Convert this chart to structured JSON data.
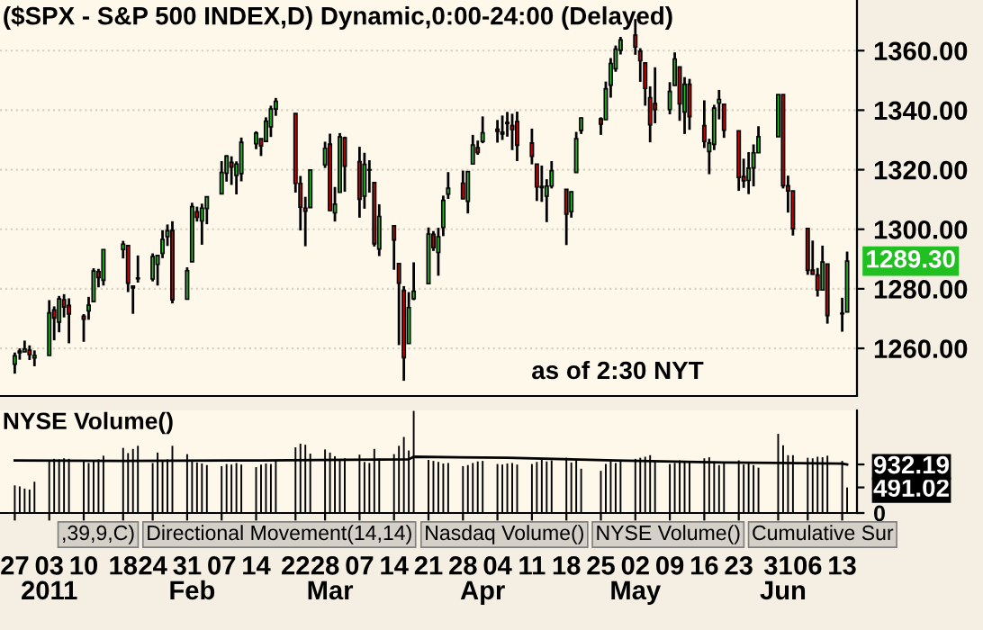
{
  "chart_data": [
    {
      "type": "candlestick",
      "title": "($SPX - S&P 500 INDEX,D) Dynamic,0:00-24:00 (Delayed)",
      "x": [
        "2010-12-27",
        "2010-12-28",
        "2010-12-29",
        "2010-12-30",
        "2010-12-31",
        "2011-01-03",
        "2011-01-04",
        "2011-01-05",
        "2011-01-06",
        "2011-01-07",
        "2011-01-10",
        "2011-01-11",
        "2011-01-12",
        "2011-01-13",
        "2011-01-14",
        "2011-01-18",
        "2011-01-19",
        "2011-01-20",
        "2011-01-21",
        "2011-01-24",
        "2011-01-25",
        "2011-01-26",
        "2011-01-27",
        "2011-01-28",
        "2011-01-31",
        "2011-02-01",
        "2011-02-02",
        "2011-02-03",
        "2011-02-04",
        "2011-02-07",
        "2011-02-08",
        "2011-02-09",
        "2011-02-10",
        "2011-02-11",
        "2011-02-14",
        "2011-02-15",
        "2011-02-16",
        "2011-02-17",
        "2011-02-18",
        "2011-02-22",
        "2011-02-23",
        "2011-02-24",
        "2011-02-25",
        "2011-02-28",
        "2011-03-01",
        "2011-03-02",
        "2011-03-03",
        "2011-03-04",
        "2011-03-07",
        "2011-03-08",
        "2011-03-09",
        "2011-03-10",
        "2011-03-11",
        "2011-03-14",
        "2011-03-15",
        "2011-03-16",
        "2011-03-17",
        "2011-03-18",
        "2011-03-21",
        "2011-03-22",
        "2011-03-23",
        "2011-03-24",
        "2011-03-25",
        "2011-03-28",
        "2011-03-29",
        "2011-03-30",
        "2011-03-31",
        "2011-04-01",
        "2011-04-04",
        "2011-04-05",
        "2011-04-06",
        "2011-04-07",
        "2011-04-08",
        "2011-04-11",
        "2011-04-12",
        "2011-04-13",
        "2011-04-14",
        "2011-04-15",
        "2011-04-18",
        "2011-04-19",
        "2011-04-20",
        "2011-04-21",
        "2011-04-25",
        "2011-04-26",
        "2011-04-27",
        "2011-04-28",
        "2011-04-29",
        "2011-05-02",
        "2011-05-03",
        "2011-05-04",
        "2011-05-05",
        "2011-05-06",
        "2011-05-09",
        "2011-05-10",
        "2011-05-11",
        "2011-05-12",
        "2011-05-13",
        "2011-05-16",
        "2011-05-17",
        "2011-05-18",
        "2011-05-19",
        "2011-05-20",
        "2011-05-23",
        "2011-05-24",
        "2011-05-25",
        "2011-05-26",
        "2011-05-27",
        "2011-05-31",
        "2011-06-01",
        "2011-06-02",
        "2011-06-03",
        "2011-06-06",
        "2011-06-07",
        "2011-06-08",
        "2011-06-09",
        "2011-06-10",
        "2011-06-13",
        "2011-06-14"
      ],
      "ohlc": [
        [
          1254.7,
          1258.6,
          1251.5,
          1257.5
        ],
        [
          1259.1,
          1260.0,
          1256.2,
          1258.5
        ],
        [
          1258.8,
          1262.6,
          1258.8,
          1259.8
        ],
        [
          1259.4,
          1261.0,
          1256.1,
          1257.9
        ],
        [
          1256.8,
          1259.3,
          1254.0,
          1257.6
        ],
        [
          1257.6,
          1276.2,
          1257.6,
          1271.9
        ],
        [
          1272.9,
          1274.1,
          1262.7,
          1270.2
        ],
        [
          1268.8,
          1277.6,
          1265.4,
          1276.6
        ],
        [
          1276.3,
          1278.2,
          1270.4,
          1273.9
        ],
        [
          1274.4,
          1276.8,
          1261.7,
          1271.5
        ],
        [
          1270.8,
          1271.5,
          1262.2,
          1269.8
        ],
        [
          1272.6,
          1277.3,
          1269.6,
          1274.5
        ],
        [
          1275.7,
          1286.9,
          1275.7,
          1286.0
        ],
        [
          1285.8,
          1286.7,
          1280.5,
          1283.8
        ],
        [
          1282.9,
          1293.2,
          1281.1,
          1293.2
        ],
        [
          1293.2,
          1296.1,
          1290.2,
          1295.0
        ],
        [
          1294.5,
          1294.6,
          1278.9,
          1281.9
        ],
        [
          1280.9,
          1280.9,
          1271.6,
          1280.3
        ],
        [
          1283.6,
          1291.2,
          1282.1,
          1283.4
        ],
        [
          1283.3,
          1291.9,
          1282.5,
          1290.8
        ],
        [
          1288.2,
          1291.3,
          1281.1,
          1291.2
        ],
        [
          1291.9,
          1299.7,
          1290.3,
          1296.6
        ],
        [
          1297.5,
          1301.6,
          1294.4,
          1299.5
        ],
        [
          1299.6,
          1302.7,
          1275.1,
          1276.3
        ],
        [
          1276.5,
          1287.2,
          1276.5,
          1286.1
        ],
        [
          1289.1,
          1308.9,
          1289.1,
          1307.6
        ],
        [
          1305.9,
          1307.6,
          1302.6,
          1304.0
        ],
        [
          1302.8,
          1308.6,
          1294.8,
          1307.1
        ],
        [
          1307.0,
          1311.0,
          1301.7,
          1310.9
        ],
        [
          1311.9,
          1322.9,
          1311.9,
          1319.1
        ],
        [
          1318.8,
          1324.9,
          1316.0,
          1324.6
        ],
        [
          1322.5,
          1324.5,
          1314.9,
          1320.9
        ],
        [
          1318.1,
          1322.8,
          1311.7,
          1321.9
        ],
        [
          1318.7,
          1330.8,
          1316.1,
          1329.2
        ],
        [
          1328.7,
          1332.9,
          1326.9,
          1332.3
        ],
        [
          1330.4,
          1330.4,
          1324.6,
          1328.0
        ],
        [
          1329.5,
          1337.6,
          1329.5,
          1336.3
        ],
        [
          1334.4,
          1341.5,
          1331.0,
          1340.4
        ],
        [
          1340.4,
          1344.1,
          1338.1,
          1343.0
        ],
        [
          1338.9,
          1338.9,
          1312.3,
          1315.4
        ],
        [
          1315.4,
          1317.9,
          1299.6,
          1307.4
        ],
        [
          1307.1,
          1310.9,
          1294.3,
          1306.1
        ],
        [
          1307.3,
          1320.0,
          1307.3,
          1319.9
        ],
        [
          1321.6,
          1329.4,
          1320.6,
          1327.2
        ],
        [
          1328.6,
          1332.1,
          1306.1,
          1306.3
        ],
        [
          1305.5,
          1314.2,
          1302.6,
          1308.4
        ],
        [
          1312.4,
          1332.3,
          1312.4,
          1331.0
        ],
        [
          1330.7,
          1331.1,
          1312.6,
          1321.2
        ],
        [
          1322.7,
          1327.7,
          1303.9,
          1310.1
        ],
        [
          1311.1,
          1325.7,
          1306.9,
          1321.8
        ],
        [
          1319.9,
          1323.2,
          1312.3,
          1320.0
        ],
        [
          1315.7,
          1315.7,
          1294.2,
          1295.1
        ],
        [
          1293.4,
          1308.4,
          1291.0,
          1304.3
        ],
        [
          1301.2,
          1301.2,
          1286.4,
          1296.4
        ],
        [
          1288.5,
          1288.5,
          1261.1,
          1281.9
        ],
        [
          1279.5,
          1280.9,
          1249.1,
          1256.9
        ],
        [
          1261.6,
          1278.9,
          1261.6,
          1273.7
        ],
        [
          1276.7,
          1288.9,
          1276.2,
          1279.2
        ],
        [
          1281.7,
          1300.6,
          1281.7,
          1298.4
        ],
        [
          1298.3,
          1299.4,
          1292.7,
          1293.8
        ],
        [
          1292.2,
          1300.5,
          1284.4,
          1297.5
        ],
        [
          1300.6,
          1311.3,
          1297.7,
          1309.7
        ],
        [
          1311.8,
          1319.2,
          1310.2,
          1313.8
        ],
        [
          1315.5,
          1319.7,
          1310.2,
          1310.2
        ],
        [
          1309.4,
          1319.5,
          1305.3,
          1319.4
        ],
        [
          1321.9,
          1331.7,
          1321.9,
          1328.3
        ],
        [
          1327.4,
          1329.8,
          1325.0,
          1325.8
        ],
        [
          1329.5,
          1337.9,
          1328.9,
          1332.4
        ],
        [
          1333.6,
          1336.7,
          1329.1,
          1332.9
        ],
        [
          1332.0,
          1338.2,
          1330.0,
          1332.6
        ],
        [
          1335.9,
          1339.4,
          1331.1,
          1335.5
        ],
        [
          1334.8,
          1338.8,
          1326.6,
          1333.5
        ],
        [
          1336.2,
          1339.5,
          1322.9,
          1328.2
        ],
        [
          1329.0,
          1333.8,
          1321.8,
          1324.5
        ],
        [
          1321.9,
          1321.9,
          1309.5,
          1314.2
        ],
        [
          1314.0,
          1321.4,
          1309.2,
          1314.4
        ],
        [
          1311.1,
          1316.8,
          1302.4,
          1314.5
        ],
        [
          1314.5,
          1322.9,
          1313.7,
          1319.7
        ],
        [
          1313.4,
          1313.4,
          1294.7,
          1305.1
        ],
        [
          1305.9,
          1312.7,
          1303.9,
          1312.6
        ],
        [
          1319.1,
          1332.7,
          1319.1,
          1330.4
        ],
        [
          1333.2,
          1337.5,
          1332.0,
          1337.4
        ],
        [
          1337.1,
          1337.6,
          1331.7,
          1335.3
        ],
        [
          1336.8,
          1349.6,
          1336.8,
          1347.2
        ],
        [
          1348.4,
          1357.5,
          1344.2,
          1355.7
        ],
        [
          1353.9,
          1361.7,
          1352.9,
          1360.5
        ],
        [
          1360.1,
          1364.6,
          1358.7,
          1363.6
        ],
        [
          1365.2,
          1370.6,
          1358.6,
          1361.2
        ],
        [
          1359.8,
          1360.8,
          1349.5,
          1356.6
        ],
        [
          1355.9,
          1355.9,
          1341.5,
          1347.3
        ],
        [
          1344.2,
          1348.0,
          1329.2,
          1335.1
        ],
        [
          1342.2,
          1354.4,
          1335.6,
          1340.2
        ],
        [
          1340.2,
          1349.4,
          1338.6,
          1346.3
        ],
        [
          1348.3,
          1359.4,
          1348.3,
          1357.2
        ],
        [
          1354.5,
          1354.5,
          1336.4,
          1342.1
        ],
        [
          1339.4,
          1351.1,
          1332.0,
          1348.7
        ],
        [
          1348.7,
          1350.5,
          1333.4,
          1337.8
        ],
        [
          1334.8,
          1343.3,
          1327.3,
          1329.5
        ],
        [
          1326.1,
          1330.4,
          1318.5,
          1329.0
        ],
        [
          1328.5,
          1341.8,
          1326.6,
          1340.7
        ],
        [
          1342.4,
          1346.8,
          1336.9,
          1343.6
        ],
        [
          1342.0,
          1342.0,
          1330.7,
          1333.3
        ],
        [
          1333.1,
          1333.1,
          1312.9,
          1317.4
        ],
        [
          1317.7,
          1323.7,
          1313.9,
          1316.3
        ],
        [
          1316.4,
          1325.9,
          1311.8,
          1320.5
        ],
        [
          1320.6,
          1328.5,
          1314.4,
          1325.7
        ],
        [
          1325.7,
          1334.6,
          1325.7,
          1331.1
        ],
        [
          1331.1,
          1345.2,
          1331.1,
          1345.2
        ],
        [
          1345.2,
          1345.2,
          1313.7,
          1314.6
        ],
        [
          1314.6,
          1318.0,
          1305.6,
          1312.9
        ],
        [
          1312.9,
          1312.9,
          1297.9,
          1300.2
        ],
        [
          1300.3,
          1300.3,
          1284.7,
          1286.2
        ],
        [
          1286.3,
          1296.2,
          1284.7,
          1284.9
        ],
        [
          1284.6,
          1287.0,
          1277.4,
          1279.6
        ],
        [
          1279.6,
          1294.5,
          1279.6,
          1289.0
        ],
        [
          1288.3,
          1288.3,
          1268.3,
          1271.0
        ],
        [
          1271.6,
          1277.0,
          1265.6,
          1271.8
        ],
        [
          1272.2,
          1292.5,
          1272.2,
          1289.3
        ]
      ],
      "colors": [
        "#20c020",
        "#d00000",
        "#20c020",
        "#d00000",
        "#20c020",
        "#20c020",
        "#d00000",
        "#20c020",
        "#d00000",
        "#d00000",
        "#d00000",
        "#20c020",
        "#20c020",
        "#d00000",
        "#20c020",
        "#20c020",
        "#d00000",
        "#d00000",
        "#d00000",
        "#20c020",
        "#20c020",
        "#20c020",
        "#20c020",
        "#d00000",
        "#20c020",
        "#20c020",
        "#d00000",
        "#20c020",
        "#20c020",
        "#20c020",
        "#20c020",
        "#d00000",
        "#20c020",
        "#20c020",
        "#20c020",
        "#d00000",
        "#20c020",
        "#20c020",
        "#20c020",
        "#d00000",
        "#d00000",
        "#d00000",
        "#20c020",
        "#20c020",
        "#d00000",
        "#20c020",
        "#20c020",
        "#d00000",
        "#d00000",
        "#20c020",
        "#d00000",
        "#d00000",
        "#20c020",
        "#d00000",
        "#d00000",
        "#d00000",
        "#20c020",
        "#20c020",
        "#20c020",
        "#d00000",
        "#20c020",
        "#20c020",
        "#20c020",
        "#d00000",
        "#20c020",
        "#20c020",
        "#d00000",
        "#20c020",
        "#d00000",
        "#20c020",
        "#d00000",
        "#d00000",
        "#d00000",
        "#d00000",
        "#d00000",
        "#20c020",
        "#20c020",
        "#20c020",
        "#d00000",
        "#20c020",
        "#20c020",
        "#20c020",
        "#d00000",
        "#20c020",
        "#20c020",
        "#20c020",
        "#20c020",
        "#d00000",
        "#d00000",
        "#d00000",
        "#d00000",
        "#d00000",
        "#20c020",
        "#20c020",
        "#d00000",
        "#20c020",
        "#d00000",
        "#d00000",
        "#20c020",
        "#20c020",
        "#20c020",
        "#d00000",
        "#d00000",
        "#d00000",
        "#20c020",
        "#20c020",
        "#20c020",
        "#20c020",
        "#d00000",
        "#d00000",
        "#d00000",
        "#d00000",
        "#d00000",
        "#d00000",
        "#20c020",
        "#d00000",
        "#20c020",
        "#20c020"
      ],
      "xlim": [
        "2010-12-24",
        "2011-06-16"
      ],
      "ylim": [
        1244,
        1377
      ],
      "yticks": [
        {
          "value": 1260,
          "label": "1260.00"
        },
        {
          "value": 1280,
          "label": "1280.00"
        },
        {
          "value": 1300,
          "label": "1300.00"
        },
        {
          "value": 1320,
          "label": "1320.00"
        },
        {
          "value": 1340,
          "label": "1340.00"
        },
        {
          "value": 1360,
          "label": "1360.00"
        }
      ],
      "grid": "y",
      "tick_labels": "y",
      "annotations": [
        "as of 2:30 NYT",
        {
          "text": "1289.30",
          "x": "2011-06-14",
          "y": 1289.3
        }
      ]
    },
    {
      "type": "bar",
      "title": "NYSE Volume()",
      "x": [
        "2010-12-27",
        "2010-12-28",
        "2010-12-29",
        "2010-12-30",
        "2010-12-31",
        "2011-01-03",
        "2011-01-04",
        "2011-01-05",
        "2011-01-06",
        "2011-01-07",
        "2011-01-10",
        "2011-01-11",
        "2011-01-12",
        "2011-01-13",
        "2011-01-14",
        "2011-01-18",
        "2011-01-19",
        "2011-01-20",
        "2011-01-21",
        "2011-01-24",
        "2011-01-25",
        "2011-01-26",
        "2011-01-27",
        "2011-01-28",
        "2011-01-31",
        "2011-02-01",
        "2011-02-02",
        "2011-02-03",
        "2011-02-04",
        "2011-02-07",
        "2011-02-08",
        "2011-02-09",
        "2011-02-10",
        "2011-02-11",
        "2011-02-14",
        "2011-02-15",
        "2011-02-16",
        "2011-02-17",
        "2011-02-18",
        "2011-02-22",
        "2011-02-23",
        "2011-02-24",
        "2011-02-25",
        "2011-02-28",
        "2011-03-01",
        "2011-03-02",
        "2011-03-03",
        "2011-03-04",
        "2011-03-07",
        "2011-03-08",
        "2011-03-09",
        "2011-03-10",
        "2011-03-11",
        "2011-03-14",
        "2011-03-15",
        "2011-03-16",
        "2011-03-17",
        "2011-03-18",
        "2011-03-21",
        "2011-03-22",
        "2011-03-23",
        "2011-03-24",
        "2011-03-25",
        "2011-03-28",
        "2011-03-29",
        "2011-03-30",
        "2011-03-31",
        "2011-04-01",
        "2011-04-04",
        "2011-04-05",
        "2011-04-06",
        "2011-04-07",
        "2011-04-08",
        "2011-04-11",
        "2011-04-12",
        "2011-04-13",
        "2011-04-14",
        "2011-04-15",
        "2011-04-18",
        "2011-04-19",
        "2011-04-20",
        "2011-04-21",
        "2011-04-25",
        "2011-04-26",
        "2011-04-27",
        "2011-04-28",
        "2011-04-29",
        "2011-05-02",
        "2011-05-03",
        "2011-05-04",
        "2011-05-05",
        "2011-05-06",
        "2011-05-09",
        "2011-05-10",
        "2011-05-11",
        "2011-05-12",
        "2011-05-13",
        "2011-05-16",
        "2011-05-17",
        "2011-05-18",
        "2011-05-19",
        "2011-05-20",
        "2011-05-23",
        "2011-05-24",
        "2011-05-25",
        "2011-05-26",
        "2011-05-27",
        "2011-05-31",
        "2011-06-01",
        "2011-06-02",
        "2011-06-03",
        "2011-06-06",
        "2011-06-07",
        "2011-06-08",
        "2011-06-09",
        "2011-06-10",
        "2011-06-13",
        "2011-06-14"
      ],
      "series": [
        {
          "type": "bar",
          "color": "#000000",
          "values": [
            530,
            510,
            470,
            450,
            600,
            1020,
            1040,
            1030,
            1050,
            1040,
            1000,
            960,
            1010,
            1030,
            1100,
            1250,
            1150,
            1230,
            1290,
            960,
            1160,
            1020,
            1030,
            1290,
            1130,
            1020,
            970,
            950,
            920,
            900,
            940,
            930,
            960,
            930,
            880,
            930,
            950,
            940,
            1020,
            1260,
            1330,
            1310,
            1140,
            1220,
            1160,
            1090,
            1020,
            1050,
            1120,
            980,
            960,
            1230,
            1040,
            1130,
            1290,
            1460,
            1200,
            1960,
            1020,
            1000,
            980,
            950,
            960,
            900,
            920,
            960,
            990,
            1000,
            940,
            930,
            950,
            960,
            930,
            940,
            980,
            1020,
            990,
            1010,
            1060,
            970,
            1010,
            850,
            810,
            940,
            990,
            960,
            1010,
            1040,
            1060,
            1080,
            1110,
            1000,
            940,
            960,
            1010,
            970,
            980,
            1050,
            1070,
            990,
            920,
            960,
            1010,
            930,
            960,
            920,
            870,
            1520,
            1300,
            1110,
            1110,
            1060,
            1050,
            1080,
            1070,
            1100,
            1000,
            491.02
          ]
        },
        {
          "type": "line",
          "color": "#000000",
          "x": [
            "2010-12-27",
            "2011-01-18",
            "2011-02-15",
            "2011-03-17",
            "2011-03-18",
            "2011-04-06",
            "2011-04-28",
            "2011-05-20",
            "2011-05-31",
            "2011-06-13",
            "2011-06-14"
          ],
          "values": [
            1010,
            1000,
            1010,
            1030,
            1080,
            1060,
            1010,
            970,
            960,
            950,
            932.19
          ]
        }
      ],
      "xlim": [
        "2010-12-24",
        "2011-06-16"
      ],
      "x2lim": [
        "2010-12-24",
        "2011-06-16"
      ],
      "ylim": [
        0,
        1970
      ],
      "yticks": [
        0,
        {
          "value": 491.02,
          "label": "491.02"
        },
        {
          "value": 932.19,
          "label": "932.19"
        }
      ],
      "xticks": [
        {
          "value": "2010-12-27",
          "label": "27"
        },
        {
          "value": "2011-01-03",
          "label": "03"
        },
        {
          "value": "2011-01-10",
          "label": "10"
        },
        {
          "value": "2011-01-18",
          "label": "18"
        },
        {
          "value": "2011-01-24",
          "label": "24"
        },
        {
          "value": "2011-01-31",
          "label": "31"
        },
        {
          "value": "2011-02-07",
          "label": "07"
        },
        {
          "value": "2011-02-14",
          "label": "14"
        },
        {
          "value": "2011-02-22",
          "label": "22"
        },
        {
          "value": "2011-02-28",
          "label": "28"
        },
        {
          "value": "2011-03-07",
          "label": "07"
        },
        {
          "value": "2011-03-14",
          "label": "14"
        },
        {
          "value": "2011-03-21",
          "label": "21"
        },
        {
          "value": "2011-03-28",
          "label": "28"
        },
        {
          "value": "2011-04-04",
          "label": "04"
        },
        {
          "value": "2011-04-11",
          "label": "11"
        },
        {
          "value": "2011-04-18",
          "label": "18"
        },
        {
          "value": "2011-04-25",
          "label": "25"
        },
        {
          "value": "2011-05-02",
          "label": "02"
        },
        {
          "value": "2011-05-09",
          "label": "09"
        },
        {
          "value": "2011-05-16",
          "label": "16"
        },
        {
          "value": "2011-05-23",
          "label": "23"
        },
        {
          "value": "2011-05-31",
          "label": "31"
        },
        {
          "value": "2011-06-06",
          "label": "06"
        },
        {
          "value": "2011-06-13",
          "label": "13"
        }
      ],
      "x2ticks": [
        {
          "value": "2011-01-03",
          "label": "2011"
        },
        {
          "value": "2011-02-01",
          "label": "Feb"
        },
        {
          "value": "2011-03-01",
          "label": "Mar"
        },
        {
          "value": "2011-04-01",
          "label": "Apr"
        },
        {
          "value": "2011-05-02",
          "label": "May"
        },
        {
          "value": "2011-06-01",
          "label": "Jun"
        }
      ],
      "annotations": [
        ",39,9,C)",
        "Directional Movement(14,14)",
        "Nasdaq Volume()",
        "NYSE Volume()",
        "Cumulative Sur"
      ]
    }
  ]
}
